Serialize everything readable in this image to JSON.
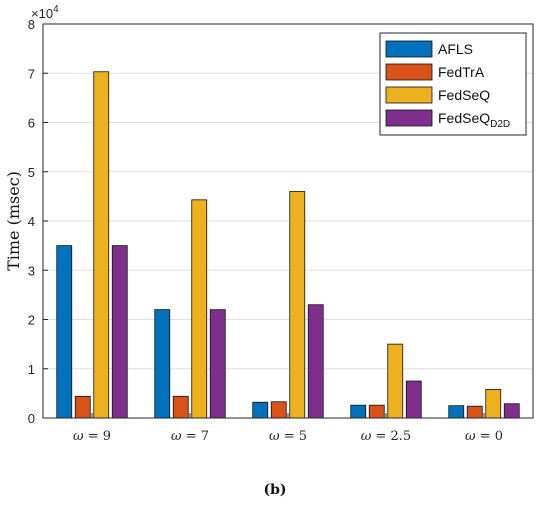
{
  "chart_data": {
    "type": "bar",
    "categories": [
      "ω = 9",
      "ω = 7",
      "ω = 5",
      "ω = 2.5",
      "ω = 0"
    ],
    "series": [
      {
        "name": "AFLS",
        "color": "#0072BD",
        "values": [
          35000,
          22000,
          3200,
          2600,
          2500
        ]
      },
      {
        "name": "FedTrA",
        "color": "#D95319",
        "values": [
          4400,
          4400,
          3300,
          2600,
          2400
        ]
      },
      {
        "name": "FedSeQ",
        "color": "#EDB120",
        "values": [
          70300,
          44300,
          46000,
          15000,
          5800
        ]
      },
      {
        "name": "FedSeQ",
        "subscript": "D2D",
        "color": "#7E2F8E",
        "values": [
          35000,
          22000,
          23000,
          7500,
          2900
        ]
      }
    ],
    "ylabel": "Time (msec)",
    "ylim": [
      0,
      80000
    ],
    "yticks": [
      0,
      1,
      2,
      3,
      4,
      5,
      6,
      7,
      8
    ],
    "yscale_label": "×10",
    "yscale_exponent": "4",
    "grid": true,
    "legend_position": "top-right",
    "caption": "(b)"
  }
}
